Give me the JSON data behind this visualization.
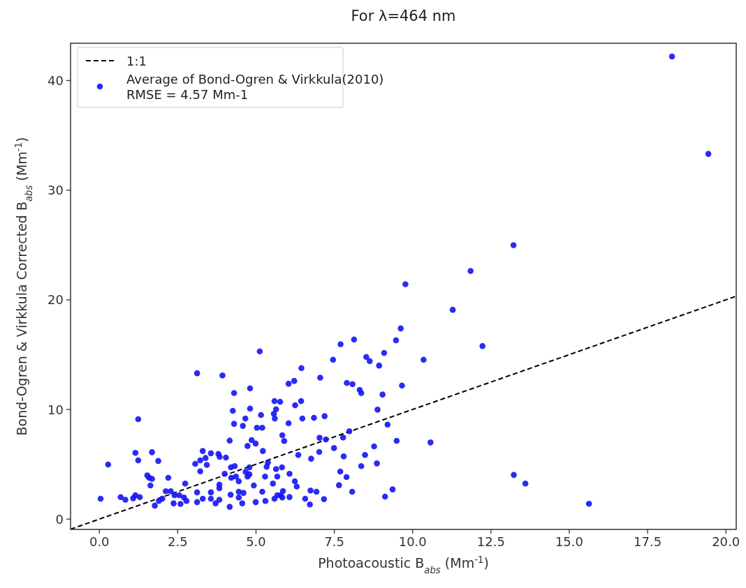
{
  "chart_data": {
    "type": "scatter",
    "title": "For λ=464 nm",
    "xlabel": "Photoacoustic B$_{abs}$ (Mm$^{-1}$)",
    "ylabel": "Bond-Ogren & Virkkula Corrected B$_{abs}$ (Mm$^{-1}$)",
    "xlim": [
      -0.92,
      20.33
    ],
    "ylim": [
      -0.94,
      43.4
    ],
    "xticks": [
      {
        "value": 0,
        "label": "0.0"
      },
      {
        "value": 2.5,
        "label": "2.5"
      },
      {
        "value": 5,
        "label": "5.0"
      },
      {
        "value": 7.5,
        "label": "7.5"
      },
      {
        "value": 10,
        "label": "10.0"
      },
      {
        "value": 12.5,
        "label": "12.5"
      },
      {
        "value": 15,
        "label": "15.0"
      },
      {
        "value": 17.5,
        "label": "17.5"
      },
      {
        "value": 20,
        "label": "20.0"
      }
    ],
    "yticks": [
      0,
      10,
      20,
      30,
      40
    ],
    "grid": false,
    "legend": "top left",
    "marker": "circle",
    "series": [
      {
        "name": "1:1",
        "type": "line",
        "line_style": "dashed",
        "marker": "none",
        "color": "#000000",
        "x": [
          -0.92,
          20.33
        ],
        "values": [
          -0.92,
          20.33
        ]
      },
      {
        "name": "Average of Bond-Ogren & Virkkula(2010)\nRMSE = 4.57 Mm-1",
        "type": "scatter",
        "color": "#1414f5",
        "x": [
          0.04,
          0.28,
          0.68,
          0.83,
          1.08,
          1.15,
          1.15,
          1.24,
          1.24,
          1.29,
          1.53,
          1.59,
          1.63,
          1.68,
          1.68,
          1.77,
          1.88,
          1.9,
          2.01,
          2.12,
          2.2,
          2.28,
          2.37,
          2.4,
          2.55,
          2.59,
          2.7,
          2.74,
          2.78,
          3.06,
          3.12,
          3.12,
          3.12,
          3.22,
          3.22,
          3.3,
          3.3,
          3.39,
          3.43,
          3.56,
          3.56,
          3.56,
          3.71,
          3.8,
          3.84,
          3.83,
          3.83,
          3.83,
          3.93,
          4.04,
          4.0,
          4.16,
          4.16,
          4.19,
          4.2,
          4.21,
          4.26,
          4.3,
          4.3,
          4.32,
          4.36,
          4.45,
          4.45,
          4.45,
          4.56,
          4.58,
          4.6,
          4.66,
          4.67,
          4.73,
          4.73,
          4.79,
          4.81,
          4.81,
          4.79,
          4.86,
          4.93,
          4.99,
          4.99,
          5.03,
          5.12,
          5.16,
          5.2,
          5.2,
          5.22,
          5.29,
          5.3,
          5.34,
          5.38,
          5.54,
          5.59,
          5.59,
          5.57,
          5.6,
          5.64,
          5.64,
          5.68,
          5.68,
          5.77,
          5.83,
          9.77,
          11.28,
          9.62,
          9.47,
          7.7,
          8.13,
          12.23,
          7.46,
          8.52,
          8.63,
          9.09,
          8.93,
          10.35,
          6.45,
          7.05,
          6.04,
          6.22,
          7.9,
          8.08,
          8.31,
          8.36,
          9.66,
          9.04,
          6.25,
          6.44,
          6.04,
          6.48,
          6.85,
          7.19,
          8.88,
          5.84,
          5.9,
          7.03,
          7.23,
          7.78,
          7.98,
          9.2,
          9.49,
          10.57,
          7.49,
          8.77,
          6.35,
          6.76,
          7.02,
          7.8,
          8.48,
          8.36,
          8.86,
          13.23,
          6.07,
          6.24,
          6.3,
          7.69,
          7.89,
          7.65,
          8.07,
          6.74,
          6.93,
          5.86,
          5.79,
          5.84,
          6.07,
          6.57,
          6.72,
          7.17,
          9.12,
          9.36,
          18.28,
          19.44,
          13.22,
          11.85,
          13.6,
          15.63
        ],
        "values": [
          1.86,
          4.98,
          2.0,
          1.76,
          1.9,
          2.18,
          6.04,
          9.11,
          5.36,
          2.0,
          3.98,
          3.77,
          3.07,
          6.1,
          3.67,
          1.23,
          5.3,
          1.65,
          1.86,
          2.54,
          3.77,
          2.54,
          1.44,
          2.18,
          2.18,
          1.38,
          1.97,
          3.24,
          1.65,
          5.04,
          13.3,
          2.44,
          1.55,
          4.36,
          5.36,
          6.21,
          1.86,
          5.57,
          4.94,
          6.0,
          2.44,
          1.86,
          1.44,
          5.95,
          5.68,
          3.14,
          2.82,
          1.76,
          13.1,
          5.61,
          4.13,
          7.16,
          1.12,
          2.22,
          4.72,
          3.77,
          9.87,
          11.5,
          8.69,
          4.83,
          3.88,
          3.45,
          2.5,
          1.97,
          1.44,
          8.5,
          2.39,
          9.17,
          4.3,
          6.67,
          3.88,
          4.09,
          11.93,
          10.08,
          4.72,
          7.2,
          3.07,
          1.55,
          6.89,
          8.33,
          15.3,
          9.49,
          8.33,
          2.5,
          6.21,
          3.88,
          1.65,
          4.77,
          5.15,
          3.24,
          1.86,
          10.76,
          9.6,
          9.17,
          4.56,
          10.02,
          3.88,
          2.18,
          10.7,
          4.72,
          21.42,
          19.09,
          17.39,
          16.31,
          15.95,
          16.38,
          15.78,
          14.53,
          14.79,
          14.41,
          15.15,
          14.0,
          14.53,
          13.77,
          12.9,
          12.35,
          12.6,
          12.42,
          12.31,
          11.78,
          11.5,
          12.18,
          11.36,
          10.38,
          10.76,
          8.75,
          9.17,
          9.24,
          9.39,
          9.98,
          7.65,
          7.12,
          7.42,
          7.27,
          7.44,
          8.01,
          8.62,
          7.14,
          6.99,
          6.48,
          6.63,
          5.85,
          5.51,
          6.12,
          5.72,
          5.85,
          4.83,
          5.08,
          4.03,
          4.13,
          3.45,
          2.97,
          4.34,
          3.83,
          3.09,
          2.5,
          2.61,
          2.5,
          2.56,
          2.18,
          1.97,
          2.01,
          1.86,
          1.33,
          1.82,
          2.05,
          2.71,
          42.19,
          33.31,
          24.98,
          22.63,
          3.24,
          1.4
        ]
      }
    ]
  }
}
